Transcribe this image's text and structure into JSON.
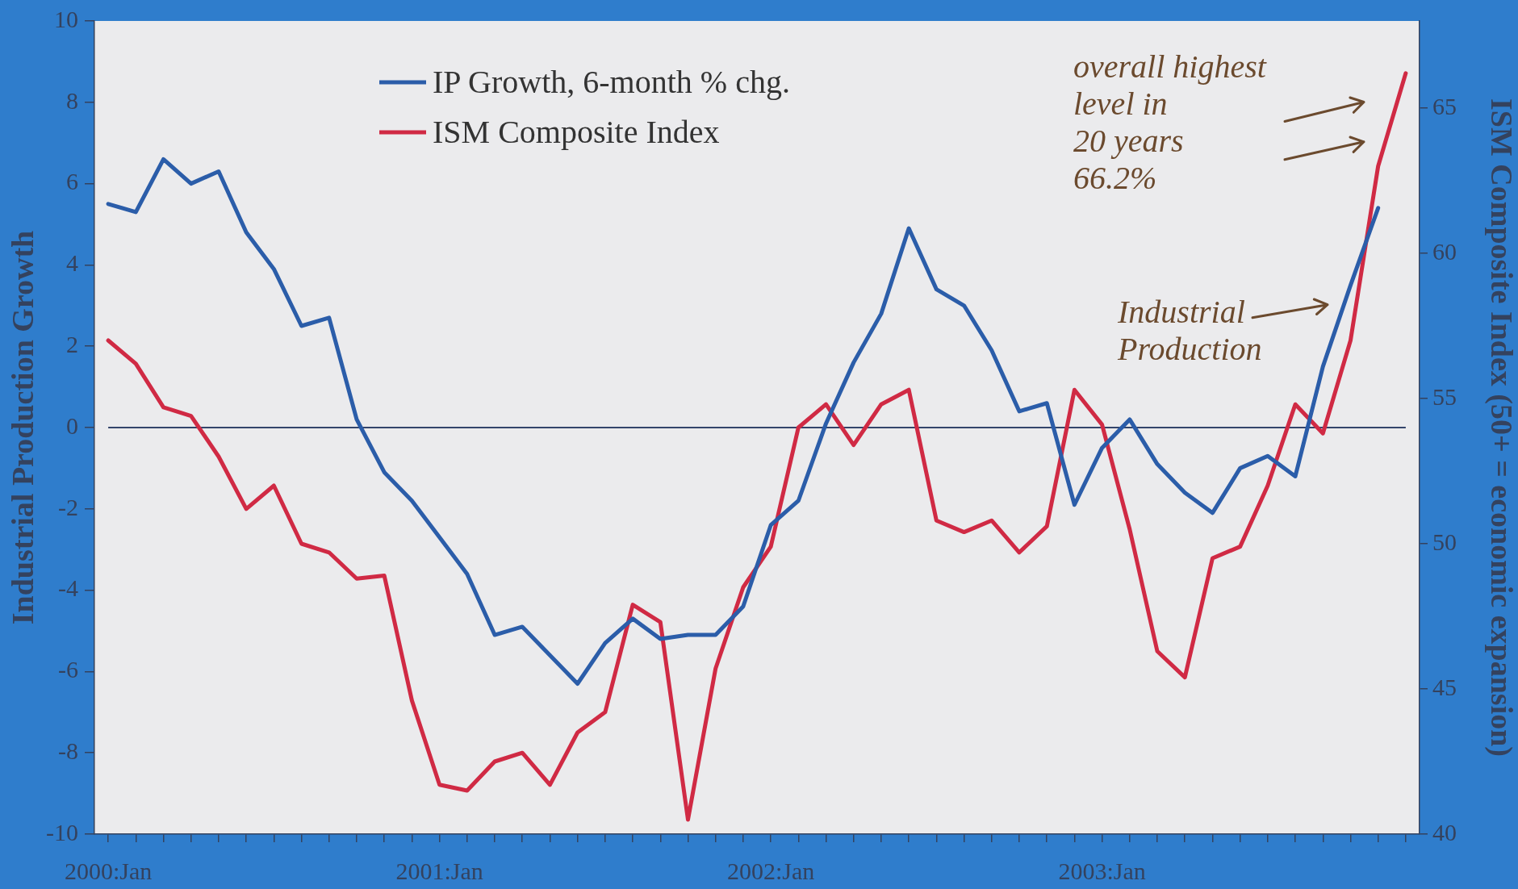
{
  "chart_data": {
    "type": "line",
    "ylabel": "Industrial Production Growth",
    "y2label": "ISM Composite Index (50+ = economic expansion)",
    "categories": [
      "2000:Jan",
      null,
      null,
      null,
      null,
      null,
      null,
      null,
      null,
      null,
      null,
      null,
      "2001:Jan",
      null,
      null,
      null,
      null,
      null,
      null,
      null,
      null,
      null,
      null,
      null,
      "2002:Jan",
      null,
      null,
      null,
      null,
      null,
      null,
      null,
      null,
      null,
      null,
      null,
      "2003:Jan",
      null,
      null,
      null,
      null,
      null,
      null,
      null,
      null,
      null,
      null,
      null
    ],
    "series": [
      {
        "name": "IP Growth, 6-month % chg.",
        "color": "#2b5da9",
        "values": [
          5.5,
          5.3,
          6.6,
          6.0,
          6.3,
          4.8,
          3.9,
          2.5,
          2.7,
          0.2,
          -1.1,
          -1.8,
          -2.7,
          -3.6,
          -5.1,
          -4.9,
          -5.6,
          -6.3,
          -5.3,
          -4.7,
          -5.2,
          -5.1,
          -5.1,
          -4.4,
          -2.4,
          -1.8,
          0.1,
          1.6,
          2.8,
          4.9,
          3.4,
          3.0,
          1.9,
          0.4,
          0.6,
          -1.9,
          -0.5,
          0.2,
          -0.9,
          -1.6,
          -2.1,
          -1.0,
          -0.7,
          -1.2,
          1.5,
          3.5,
          5.4,
          null
        ]
      },
      {
        "name": "ISM Composite Index",
        "color": "#d02a44",
        "axis": "y2",
        "values": [
          57.0,
          56.2,
          54.7,
          54.4,
          53.0,
          51.2,
          52.0,
          50.0,
          49.7,
          48.8,
          48.9,
          44.6,
          41.7,
          41.5,
          42.5,
          42.8,
          41.7,
          43.5,
          44.2,
          47.9,
          47.3,
          40.5,
          45.7,
          48.5,
          49.9,
          54.0,
          54.8,
          53.4,
          54.8,
          55.3,
          50.8,
          50.4,
          50.8,
          49.7,
          50.6,
          55.3,
          54.1,
          50.5,
          46.3,
          45.4,
          49.5,
          49.9,
          52.0,
          54.8,
          53.8,
          57.0,
          63.0,
          66.2
        ]
      }
    ],
    "ylim": [
      -10,
      10
    ],
    "yticks": [
      -10,
      -8,
      -6,
      -4,
      -2,
      0,
      2,
      4,
      6,
      8,
      10
    ],
    "y2lim": [
      40,
      68
    ],
    "y2ticks": [
      40,
      45,
      50,
      55,
      60,
      65
    ],
    "ref_lines": [
      {
        "axis": "y",
        "value": 0,
        "color": "#34456b"
      }
    ],
    "legend": "top left",
    "marker": "none",
    "line_style": "solid",
    "annotations": [
      "overall highest\nlevel in\n20 years\n66.2%",
      "Industrial\nProduction"
    ]
  }
}
